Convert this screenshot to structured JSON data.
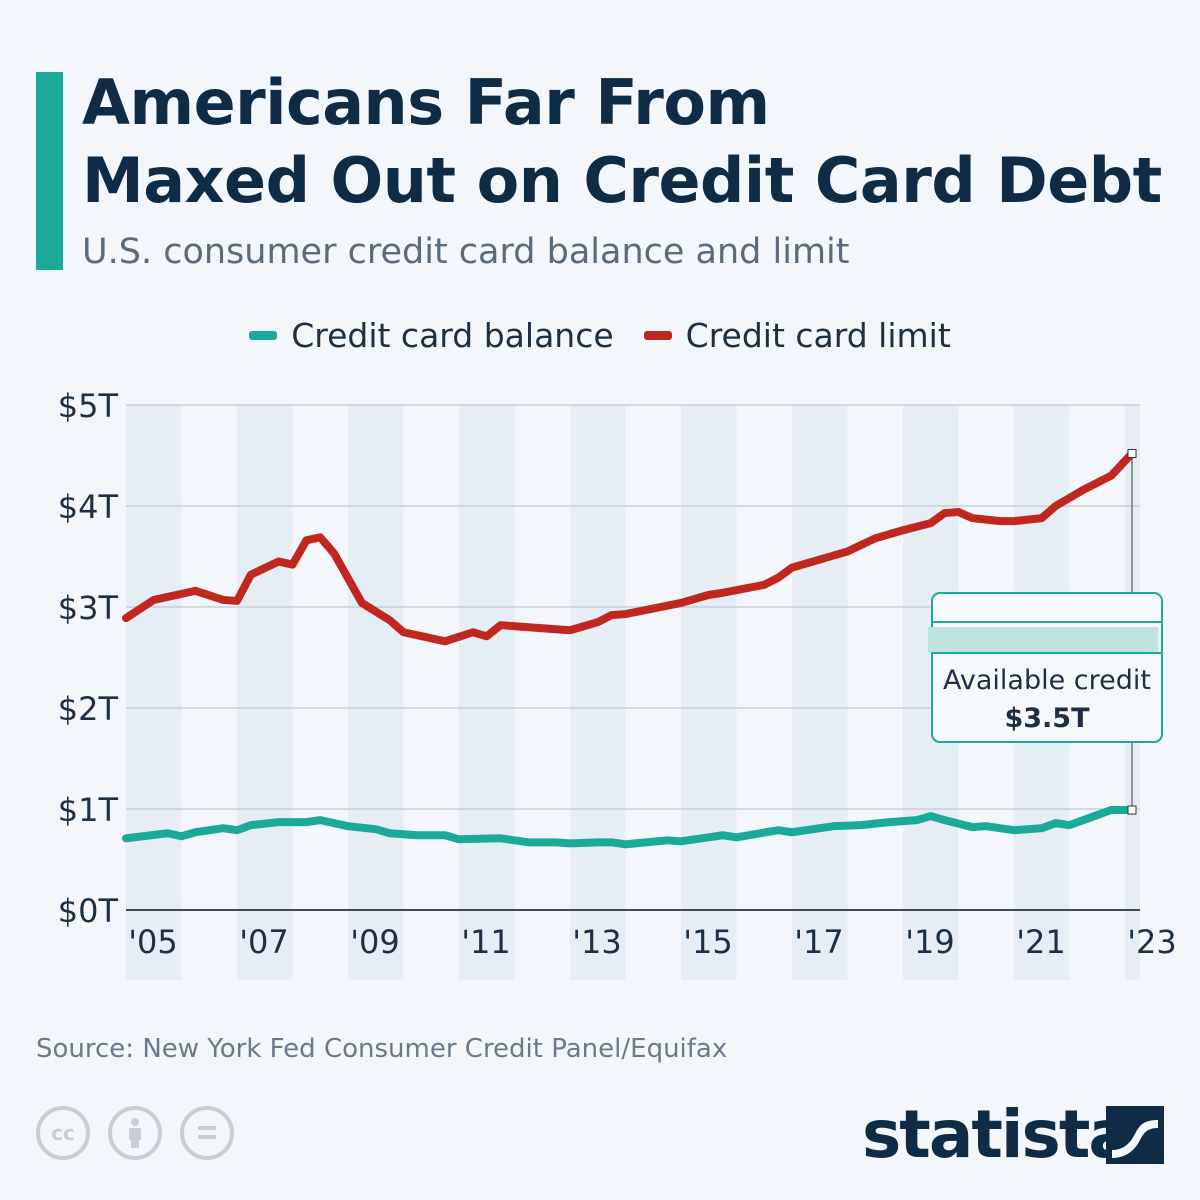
{
  "header": {
    "title_line1": "Americans Far From",
    "title_line2": "Maxed Out on Credit Card Debt",
    "subtitle": "U.S. consumer credit card balance and limit"
  },
  "colors": {
    "accent": "#1ba99a",
    "balance": "#1ba99a",
    "limit": "#c0281f",
    "title": "#0f2b46"
  },
  "chart_data": {
    "type": "line",
    "title": "Americans Far From Maxed Out on Credit Card Debt",
    "subtitle": "U.S. consumer credit card balance and limit",
    "xlabel": "",
    "ylabel": "",
    "ylim": [
      0,
      5
    ],
    "y_ticks": [
      "$0T",
      "$1T",
      "$2T",
      "$3T",
      "$4T",
      "$5T"
    ],
    "x_ticks": [
      "'05",
      "'07",
      "'09",
      "'11",
      "'13",
      "'15",
      "'17",
      "'19",
      "'21",
      "'23"
    ],
    "grid": true,
    "legend_position": "top",
    "series": [
      {
        "name": "Credit card balance",
        "color": "#1ba99a",
        "x": [
          2005.0,
          2005.75,
          2006.0,
          2006.25,
          2006.75,
          2007.0,
          2007.25,
          2007.75,
          2008.25,
          2008.5,
          2009.0,
          2009.5,
          2009.75,
          2010.25,
          2010.75,
          2011.0,
          2011.75,
          2012.25,
          2012.75,
          2013.0,
          2013.5,
          2013.75,
          2014.0,
          2014.75,
          2015.0,
          2015.5,
          2015.75,
          2016.0,
          2016.75,
          2017.0,
          2017.75,
          2018.25,
          2018.75,
          2019.25,
          2019.5,
          2019.75,
          2020.25,
          2020.5,
          2021.0,
          2021.5,
          2021.75,
          2022.0,
          2022.5,
          2022.75,
          2023.0
        ],
        "values": [
          0.71,
          0.76,
          0.73,
          0.77,
          0.81,
          0.79,
          0.84,
          0.87,
          0.87,
          0.89,
          0.83,
          0.8,
          0.76,
          0.74,
          0.74,
          0.7,
          0.71,
          0.67,
          0.67,
          0.66,
          0.67,
          0.67,
          0.65,
          0.69,
          0.68,
          0.72,
          0.74,
          0.72,
          0.79,
          0.77,
          0.83,
          0.84,
          0.87,
          0.89,
          0.93,
          0.89,
          0.82,
          0.83,
          0.79,
          0.81,
          0.86,
          0.84,
          0.94,
          0.99,
          0.99
        ]
      },
      {
        "name": "Credit card limit",
        "color": "#c0281f",
        "x": [
          2005.0,
          2005.5,
          2006.0,
          2006.25,
          2006.75,
          2007.0,
          2007.25,
          2007.75,
          2008.0,
          2008.25,
          2008.5,
          2008.75,
          2009.25,
          2009.75,
          2010.0,
          2010.5,
          2010.75,
          2011.25,
          2011.5,
          2011.75,
          2012.5,
          2013.0,
          2013.5,
          2013.75,
          2014.0,
          2015.0,
          2015.5,
          2015.75,
          2016.5,
          2016.75,
          2017.0,
          2017.5,
          2018.0,
          2018.5,
          2019.0,
          2019.5,
          2019.75,
          2020.0,
          2020.25,
          2020.75,
          2021.0,
          2021.5,
          2021.75,
          2022.0,
          2022.25,
          2022.75,
          2023.0
        ],
        "values": [
          2.89,
          3.07,
          3.13,
          3.16,
          3.07,
          3.06,
          3.32,
          3.45,
          3.42,
          3.66,
          3.69,
          3.53,
          3.04,
          2.87,
          2.75,
          2.69,
          2.66,
          2.75,
          2.71,
          2.82,
          2.79,
          2.77,
          2.85,
          2.92,
          2.93,
          3.04,
          3.12,
          3.14,
          3.22,
          3.29,
          3.39,
          3.47,
          3.55,
          3.68,
          3.76,
          3.83,
          3.93,
          3.94,
          3.88,
          3.85,
          3.85,
          3.88,
          4.0,
          4.08,
          4.16,
          4.3,
          4.52
        ]
      }
    ],
    "annotations": [
      {
        "label": "Available credit",
        "value": "$3.5T"
      }
    ]
  },
  "footer": {
    "source": "Source: New York Fed Consumer Credit Panel/Equifax",
    "license_icons": [
      "cc-icon",
      "attribution-icon",
      "no-derivatives-icon"
    ],
    "brand": "statista"
  }
}
